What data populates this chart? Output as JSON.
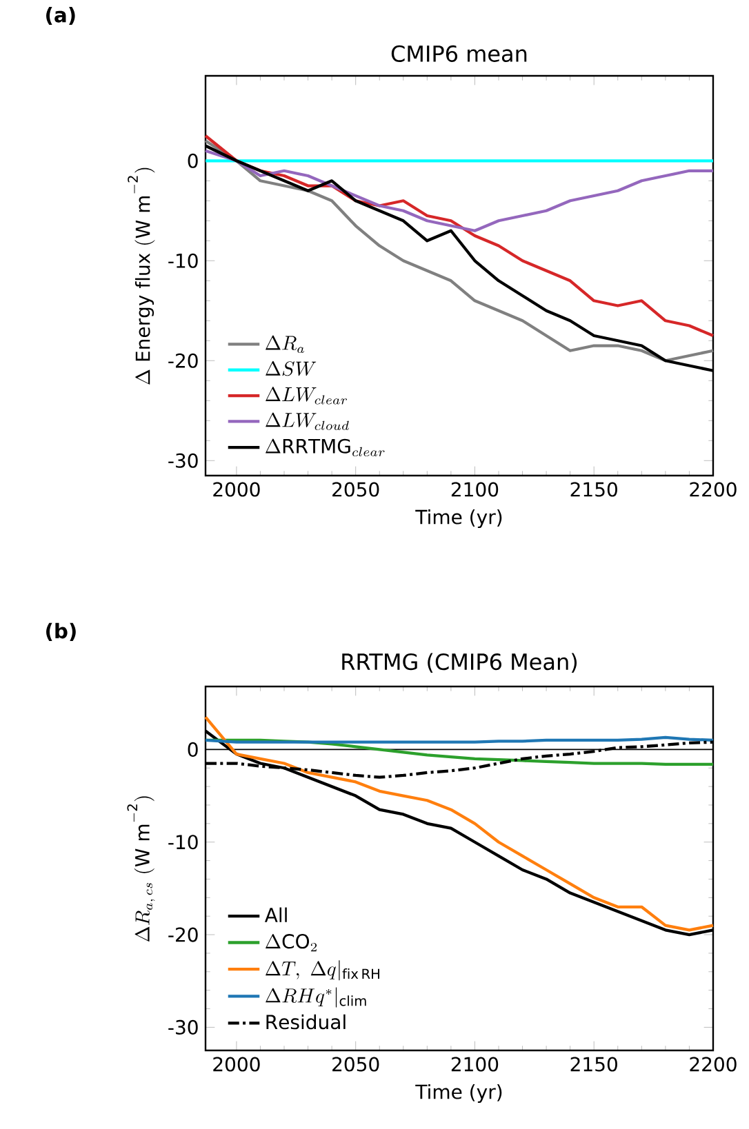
{
  "chart_data": [
    {
      "type": "line",
      "title": "CMIP6 mean",
      "xlabel": "Time (yr)",
      "ylabel": "\\Delta\\ \\mathrm{Energy\\ flux\\ (W\\ m^{-2})}",
      "annotations": [
        "(a)"
      ],
      "x": [
        1987,
        2000,
        2010,
        2020,
        2030,
        2040,
        2050,
        2060,
        2070,
        2080,
        2090,
        2100,
        2110,
        2120,
        2130,
        2140,
        2150,
        2160,
        2170,
        2180,
        2190,
        2200
      ],
      "xlim": [
        1987,
        2200
      ],
      "xticks": [
        2000,
        2050,
        2100,
        2150,
        2200
      ],
      "ylim": [
        -31.5,
        8.5
      ],
      "yticks": [
        -30,
        -20,
        -10,
        0
      ],
      "legend": "bottom left",
      "series": [
        {
          "name": "\\Delta R_a",
          "color": "#808080",
          "values": [
            2,
            0,
            -2,
            -2.5,
            -3,
            -4,
            -6.5,
            -8.5,
            -10,
            -11,
            -12,
            -14,
            -15,
            -16,
            -17.5,
            -19,
            -18.5,
            -18.5,
            -19,
            -20,
            -19.5,
            -19
          ]
        },
        {
          "name": "\\Delta SW",
          "color": "#00ffff",
          "values": [
            0,
            0,
            0,
            0,
            0,
            0,
            0,
            0,
            0,
            0,
            0,
            0,
            0,
            0,
            0,
            0,
            0,
            0,
            0,
            0,
            0,
            0
          ]
        },
        {
          "name": "\\Delta LW_{clear}",
          "color": "#d62728",
          "values": [
            2.5,
            0,
            -1,
            -1.5,
            -2.5,
            -2.5,
            -4,
            -4.5,
            -4,
            -5.5,
            -6,
            -7.5,
            -8.5,
            -10,
            -11,
            -12,
            -14,
            -14.5,
            -14,
            -16,
            -16.5,
            -17.5
          ]
        },
        {
          "name": "\\Delta LW_{cloud}",
          "color": "#9467bd",
          "values": [
            1,
            0,
            -1.5,
            -1,
            -1.5,
            -2.5,
            -3.5,
            -4.5,
            -5,
            -6,
            -6.5,
            -7,
            -6,
            -5.5,
            -5,
            -4,
            -3.5,
            -3,
            -2,
            -1.5,
            -1,
            -1
          ]
        },
        {
          "name": "\\Delta\\mathrm{RRTMG}_{clear}",
          "color": "#000000",
          "values": [
            1.5,
            0,
            -1,
            -2,
            -3,
            -2,
            -4,
            -5,
            -6,
            -8,
            -7,
            -10,
            -12,
            -13.5,
            -15,
            -16,
            -17.5,
            -18,
            -18.5,
            -20,
            -20.5,
            -21
          ]
        }
      ]
    },
    {
      "type": "line",
      "title": "RRTMG (CMIP6 Mean)",
      "xlabel": "Time (yr)",
      "ylabel": "\\Delta R_{a,\\,cs}\\ \\mathrm{(W\\ m^{-2})}",
      "annotations": [
        "(b)"
      ],
      "x": [
        1987,
        2000,
        2010,
        2020,
        2030,
        2040,
        2050,
        2060,
        2070,
        2080,
        2090,
        2100,
        2110,
        2120,
        2130,
        2140,
        2150,
        2160,
        2170,
        2180,
        2190,
        2200
      ],
      "xlim": [
        1987,
        2200
      ],
      "xticks": [
        2000,
        2050,
        2100,
        2150,
        2200
      ],
      "ylim": [
        -32.5,
        6.8
      ],
      "yticks": [
        -30,
        -20,
        -10,
        0
      ],
      "legend": "bottom left",
      "ref_lines": [
        {
          "axis": "y",
          "value": 0,
          "color": "#000000"
        }
      ],
      "series": [
        {
          "name": "\\mathrm{All}",
          "color": "#000000",
          "values": [
            2,
            -0.5,
            -1.5,
            -2,
            -3,
            -4,
            -5,
            -6.5,
            -7,
            -8,
            -8.5,
            -10,
            -11.5,
            -13,
            -14,
            -15.5,
            -16.5,
            -17.5,
            -18.5,
            -19.5,
            -20,
            -19.5
          ]
        },
        {
          "name": "\\Delta\\mathrm{CO}_2",
          "color": "#2ca02c",
          "values": [
            1,
            1,
            1,
            0.9,
            0.8,
            0.6,
            0.3,
            0,
            -0.3,
            -0.6,
            -0.8,
            -1,
            -1.1,
            -1.2,
            -1.3,
            -1.4,
            -1.5,
            -1.5,
            -1.5,
            -1.6,
            -1.6,
            -1.6
          ]
        },
        {
          "name": "\\Delta T,\\ \\Delta q|_{\\mathrm{fix\\,RH}}",
          "color": "#ff7f0e",
          "values": [
            3.5,
            -0.5,
            -1,
            -1.5,
            -2.5,
            -3,
            -3.5,
            -4.5,
            -5,
            -5.5,
            -6.5,
            -8,
            -10,
            -11.5,
            -13,
            -14.5,
            -16,
            -17,
            -17,
            -19,
            -19.5,
            -19
          ]
        },
        {
          "name": "\\Delta RHq^*|_{\\mathrm{clim}}",
          "color": "#1f77b4",
          "values": [
            1,
            0.8,
            0.8,
            0.8,
            0.8,
            0.8,
            0.8,
            0.8,
            0.8,
            0.8,
            0.8,
            0.8,
            0.9,
            0.9,
            1,
            1,
            1,
            1,
            1.1,
            1.3,
            1.1,
            1
          ]
        },
        {
          "name": "\\mathrm{Residual}",
          "color": "#000000",
          "line_style": "dashdot",
          "values": [
            -1.5,
            -1.5,
            -1.8,
            -2,
            -2.2,
            -2.5,
            -2.8,
            -3,
            -2.8,
            -2.5,
            -2.3,
            -2,
            -1.5,
            -1,
            -0.7,
            -0.5,
            -0.2,
            0.2,
            0.3,
            0.5,
            0.7,
            0.8
          ]
        }
      ]
    }
  ]
}
